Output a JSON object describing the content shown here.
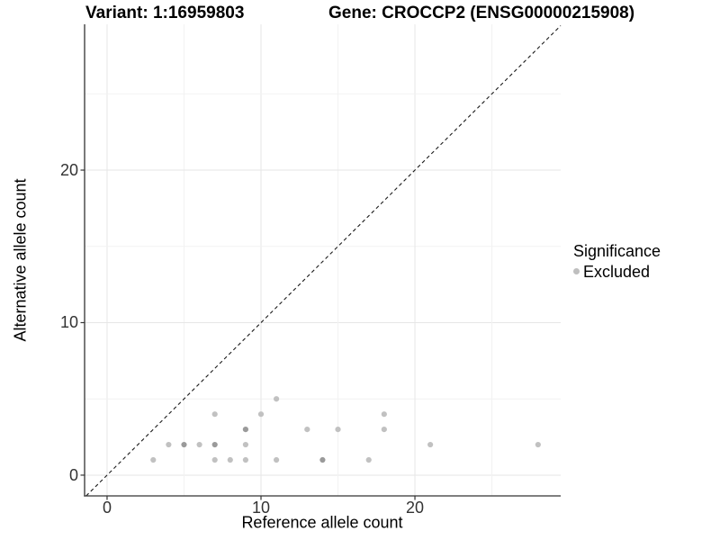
{
  "chart_data": {
    "type": "scatter",
    "titles": {
      "variant": "Variant: 1:16959803",
      "gene": "Gene: CROCCP2 (ENSG00000215908)"
    },
    "xlabel": "Reference allele count",
    "ylabel": "Alternative allele count",
    "xlim": [
      -1.46,
      29.47
    ],
    "ylim": [
      -1.36,
      29.56
    ],
    "x_ticks": [
      {
        "v": 0,
        "label": "0"
      },
      {
        "v": 10,
        "label": "10"
      },
      {
        "v": 20,
        "label": "20"
      }
    ],
    "y_ticks": [
      {
        "v": 0,
        "label": "0"
      },
      {
        "v": 10,
        "label": "10"
      },
      {
        "v": 20,
        "label": "20"
      }
    ],
    "grid_major": [
      0,
      5,
      10,
      15,
      20,
      25
    ],
    "grid_minor": [
      5,
      15,
      25
    ],
    "grid_on": true,
    "identity_line": {
      "style": "dashed",
      "slope": 1,
      "intercept": 0
    },
    "legend": {
      "position": "right",
      "title": "Significance",
      "items": [
        {
          "label": "Excluded",
          "color": "#bfbfbf"
        }
      ]
    },
    "series": [
      {
        "name": "Excluded",
        "points": [
          {
            "x": 3,
            "y": 1,
            "n": 1
          },
          {
            "x": 4,
            "y": 2,
            "n": 1
          },
          {
            "x": 5,
            "y": 2,
            "n": 2
          },
          {
            "x": 6,
            "y": 2,
            "n": 1
          },
          {
            "x": 7,
            "y": 1,
            "n": 1
          },
          {
            "x": 7,
            "y": 2,
            "n": 2
          },
          {
            "x": 7,
            "y": 4,
            "n": 1
          },
          {
            "x": 8,
            "y": 1,
            "n": 1
          },
          {
            "x": 9,
            "y": 1,
            "n": 1
          },
          {
            "x": 9,
            "y": 2,
            "n": 1
          },
          {
            "x": 9,
            "y": 3,
            "n": 2
          },
          {
            "x": 10,
            "y": 4,
            "n": 1
          },
          {
            "x": 11,
            "y": 1,
            "n": 1
          },
          {
            "x": 11,
            "y": 5,
            "n": 1
          },
          {
            "x": 13,
            "y": 3,
            "n": 1
          },
          {
            "x": 14,
            "y": 1,
            "n": 2
          },
          {
            "x": 15,
            "y": 3,
            "n": 1
          },
          {
            "x": 17,
            "y": 1,
            "n": 1
          },
          {
            "x": 18,
            "y": 3,
            "n": 1
          },
          {
            "x": 18,
            "y": 4,
            "n": 1
          },
          {
            "x": 21,
            "y": 2,
            "n": 1
          },
          {
            "x": 28,
            "y": 2,
            "n": 1
          }
        ]
      }
    ],
    "colors": {
      "point": "#c1c1c1",
      "point_overlap": "#9a9a9a",
      "grid_major": "#e6e6e6",
      "grid_minor": "#f2f2f2",
      "axis": "#333333",
      "identity_line": "#1a1a1a",
      "background": "#ffffff"
    }
  }
}
